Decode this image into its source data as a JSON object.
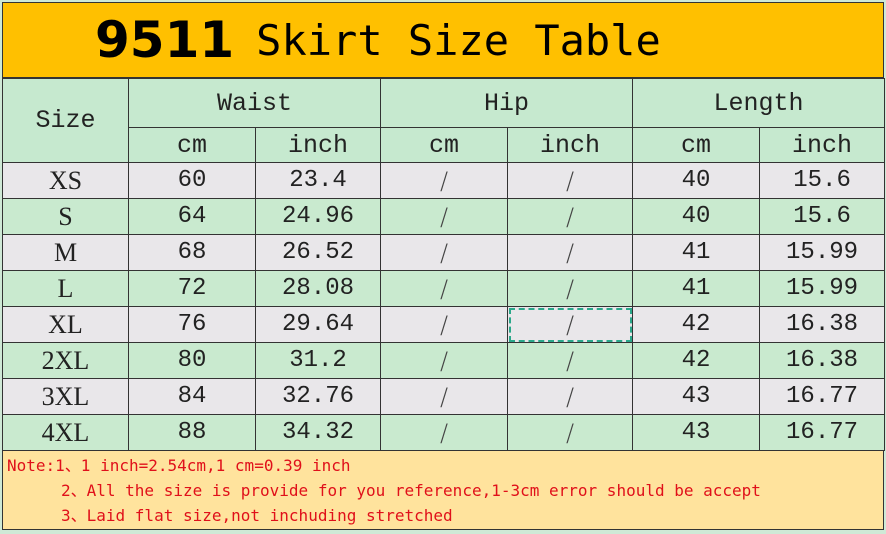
{
  "title": {
    "number": "9511",
    "text": "Skirt Size Table"
  },
  "headers": {
    "size": "Size",
    "groups": [
      "Waist",
      "Hip",
      "Length"
    ],
    "units": [
      "cm",
      "inch",
      "cm",
      "inch",
      "cm",
      "inch"
    ]
  },
  "rows": [
    {
      "size": "XS",
      "cells": [
        "60",
        "23.4",
        "/",
        "/",
        "40",
        "15.6"
      ]
    },
    {
      "size": "S",
      "cells": [
        "64",
        "24.96",
        "/",
        "/",
        "40",
        "15.6"
      ]
    },
    {
      "size": "M",
      "cells": [
        "68",
        "26.52",
        "/",
        "/",
        "41",
        "15.99"
      ]
    },
    {
      "size": "L",
      "cells": [
        "72",
        "28.08",
        "/",
        "/",
        "41",
        "15.99"
      ]
    },
    {
      "size": "XL",
      "cells": [
        "76",
        "29.64",
        "/",
        "/",
        "42",
        "16.38"
      ]
    },
    {
      "size": "2XL",
      "cells": [
        "80",
        "31.2",
        "/",
        "/",
        "42",
        "16.38"
      ]
    },
    {
      "size": "3XL",
      "cells": [
        "84",
        "32.76",
        "/",
        "/",
        "43",
        "16.77"
      ]
    },
    {
      "size": "4XL",
      "cells": [
        "88",
        "34.32",
        "/",
        "/",
        "43",
        "16.77"
      ]
    }
  ],
  "notes": [
    "Note:1、1 inch=2.54cm,1 cm=0.39 inch",
    "2、All the size is provide for you reference,1-3cm error should be accept",
    "3、Laid flat size,not inchuding stretched"
  ],
  "colors": {
    "title_bg": "#FFC000",
    "header_bg": "#C6E9CF",
    "row_gray": "#E9E7EA",
    "row_green": "#C9EACF",
    "notes_bg": "#FFE39D",
    "notes_text": "#E0101A"
  }
}
